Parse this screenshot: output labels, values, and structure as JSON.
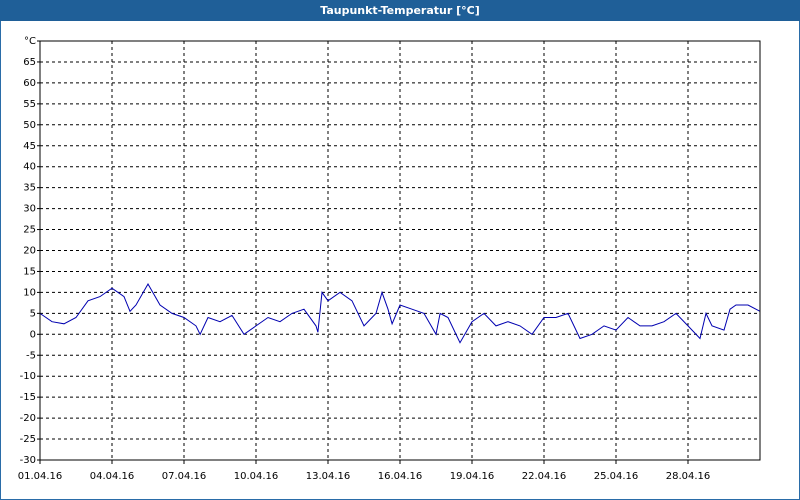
{
  "chart_data": {
    "type": "line",
    "title": "Taupunkt-Temperatur [°C]",
    "x": [
      0,
      0.5,
      1,
      1.5,
      2,
      2.5,
      3,
      3.5,
      3.75,
      4,
      4.5,
      5,
      5.5,
      6,
      6.5,
      6.67,
      7,
      7.5,
      8,
      8.5,
      9,
      9.5,
      10,
      10.5,
      11,
      11.5,
      11.58,
      11.75,
      12,
      12.5,
      13,
      13.5,
      14,
      14.25,
      14.5,
      14.67,
      15,
      15.5,
      16,
      16.5,
      16.67,
      17,
      17.5,
      18,
      18.5,
      19,
      19.5,
      20,
      20.5,
      21,
      21.5,
      22,
      22.5,
      23,
      23.5,
      24,
      24.5,
      25,
      25.5,
      26,
      26.5,
      27,
      27.5,
      27.75,
      28,
      28.5,
      28.75,
      29,
      29.5,
      30
    ],
    "series": [
      {
        "name": "Taupunkt",
        "color": "#0000b0",
        "values": [
          5,
          3,
          2.5,
          4,
          8,
          9,
          11,
          9,
          5.5,
          7,
          12,
          7,
          5,
          4,
          2,
          0,
          4,
          3,
          4.5,
          0,
          2,
          4,
          3,
          5,
          6,
          2,
          0.5,
          10,
          8,
          10,
          8,
          2,
          5,
          10,
          6,
          2.5,
          7,
          6,
          5,
          0,
          5,
          4,
          -2,
          3,
          5,
          2,
          3,
          2,
          0,
          4,
          4,
          5,
          -1,
          0,
          2,
          1,
          4,
          2,
          2,
          3,
          5,
          2,
          -1,
          5,
          2,
          1,
          6,
          7,
          7,
          5.5
        ]
      }
    ],
    "xlim": [
      0,
      30
    ],
    "xticks": [
      {
        "value": 0,
        "label": "01.04.16"
      },
      {
        "value": 3,
        "label": "04.04.16"
      },
      {
        "value": 6,
        "label": "07.04.16"
      },
      {
        "value": 9,
        "label": "10.04.16"
      },
      {
        "value": 12,
        "label": "13.04.16"
      },
      {
        "value": 15,
        "label": "16.04.16"
      },
      {
        "value": 18,
        "label": "19.04.16"
      },
      {
        "value": 21,
        "label": "22.04.16"
      },
      {
        "value": 24,
        "label": "25.04.16"
      },
      {
        "value": 27,
        "label": "28.04.16"
      }
    ],
    "ylim": [
      -30,
      70
    ],
    "yticks": [
      -30,
      -25,
      -20,
      -15,
      -10,
      -5,
      0,
      5,
      10,
      15,
      20,
      25,
      30,
      35,
      40,
      45,
      50,
      55,
      60,
      65,
      {
        "value": 70,
        "label": "°C"
      }
    ],
    "grid": true
  }
}
